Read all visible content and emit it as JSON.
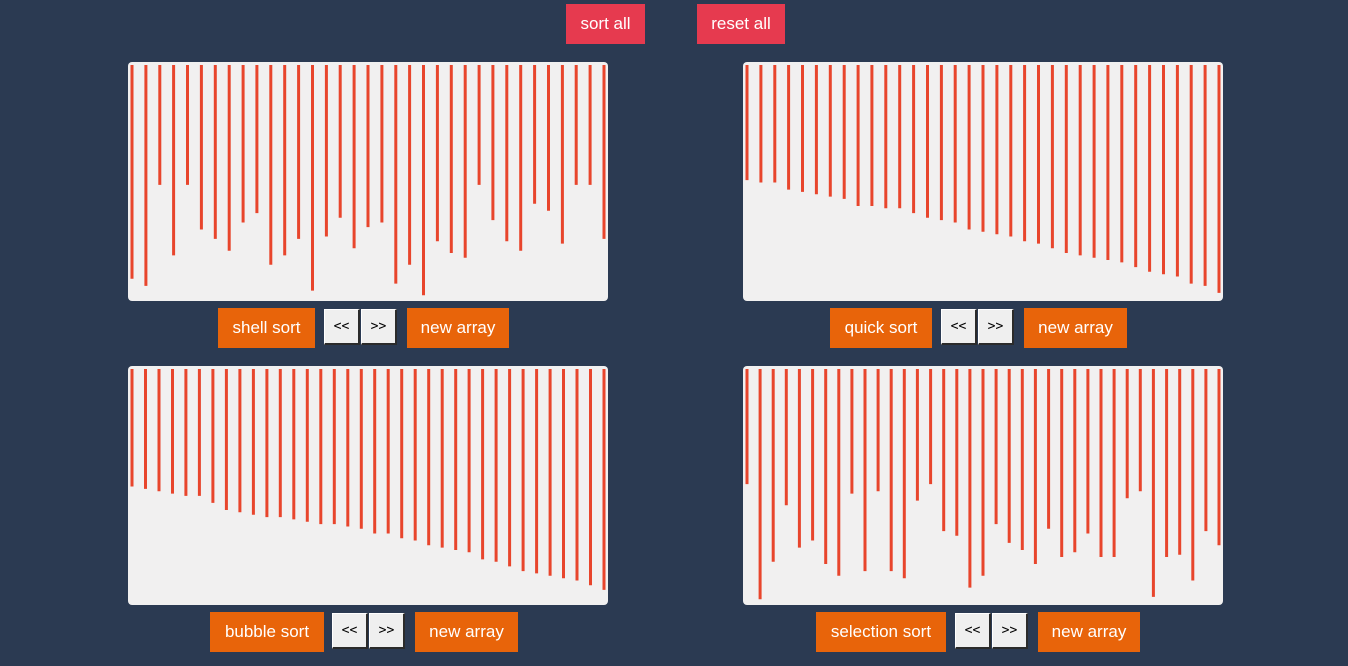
{
  "toolbar": {
    "sort_all_label": "sort all",
    "reset_all_label": "reset all"
  },
  "colors": {
    "background": "#2b3a52",
    "bar": "#e8452c",
    "panel": "#f1f0f0",
    "action_button": "#e8640a",
    "global_button": "#e63a4f"
  },
  "panels": [
    {
      "sort_label": "shell sort",
      "prev_label": "<<",
      "next_label": ">>",
      "new_array_label": "new array",
      "values": [
        0.91,
        0.94,
        0.51,
        0.81,
        0.51,
        0.7,
        0.74,
        0.79,
        0.67,
        0.63,
        0.85,
        0.81,
        0.74,
        0.96,
        0.73,
        0.65,
        0.78,
        0.69,
        0.67,
        0.93,
        0.85,
        0.98,
        0.75,
        0.8,
        0.82,
        0.51,
        0.66,
        0.75,
        0.79,
        0.59,
        0.62,
        0.76,
        0.51,
        0.51,
        0.74
      ]
    },
    {
      "sort_label": "quick sort",
      "prev_label": "<<",
      "next_label": ">>",
      "new_array_label": "new array",
      "values": [
        0.49,
        0.5,
        0.5,
        0.53,
        0.54,
        0.55,
        0.56,
        0.57,
        0.6,
        0.6,
        0.61,
        0.61,
        0.63,
        0.65,
        0.66,
        0.67,
        0.7,
        0.71,
        0.72,
        0.73,
        0.75,
        0.76,
        0.78,
        0.8,
        0.81,
        0.82,
        0.83,
        0.84,
        0.86,
        0.88,
        0.89,
        0.9,
        0.93,
        0.94,
        0.97
      ]
    },
    {
      "sort_label": "bubble sort",
      "prev_label": "<<",
      "next_label": ">>",
      "new_array_label": "new array",
      "values": [
        0.5,
        0.51,
        0.52,
        0.53,
        0.54,
        0.54,
        0.57,
        0.6,
        0.61,
        0.62,
        0.63,
        0.63,
        0.64,
        0.65,
        0.66,
        0.66,
        0.67,
        0.68,
        0.7,
        0.7,
        0.72,
        0.73,
        0.75,
        0.76,
        0.77,
        0.78,
        0.81,
        0.82,
        0.84,
        0.86,
        0.87,
        0.88,
        0.89,
        0.9,
        0.92,
        0.94
      ]
    },
    {
      "sort_label": "selection sort",
      "prev_label": "<<",
      "next_label": ">>",
      "new_array_label": "new array",
      "values": [
        0.49,
        0.98,
        0.82,
        0.58,
        0.76,
        0.73,
        0.83,
        0.88,
        0.53,
        0.86,
        0.52,
        0.86,
        0.89,
        0.56,
        0.49,
        0.69,
        0.71,
        0.93,
        0.88,
        0.66,
        0.74,
        0.77,
        0.83,
        0.68,
        0.8,
        0.78,
        0.7,
        0.8,
        0.8,
        0.55,
        0.52,
        0.97,
        0.8,
        0.79,
        0.9,
        0.69,
        0.75
      ]
    }
  ]
}
